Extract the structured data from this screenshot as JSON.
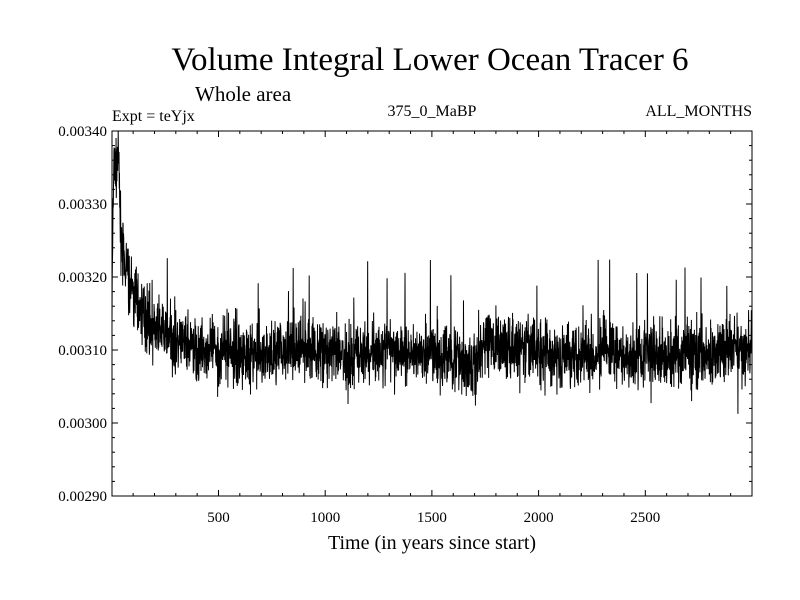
{
  "chart_data": {
    "type": "line",
    "title": "Volume Integral Lower Ocean Tracer 6",
    "subtitle": "Whole area",
    "experiment": "Expt = teYjx",
    "run_label": "375_0_MaBP",
    "months_label": "ALL_MONTHS",
    "xlabel": "Time (in years since start)",
    "ylabel": "",
    "xlim": [
      1,
      3000
    ],
    "ylim": [
      0.0029,
      0.0034
    ],
    "xticks": [
      500,
      1000,
      1500,
      2000,
      2500
    ],
    "yticks": [
      0.0029,
      0.003,
      0.0031,
      0.0032,
      0.0033,
      0.0034
    ],
    "ytick_labels": [
      "0.00290",
      "0.00300",
      "0.00310",
      "0.00320",
      "0.00330",
      "0.00340"
    ],
    "series": [
      {
        "name": "Tracer 6",
        "color": "#000000",
        "x": [
          1,
          10,
          20,
          30,
          40,
          50,
          60,
          70,
          80,
          90,
          100,
          125,
          150,
          175,
          200,
          250,
          300,
          350,
          400,
          450,
          500,
          600,
          700,
          800,
          900,
          1000,
          1100,
          1200,
          1300,
          1400,
          1500,
          1600,
          1650,
          1700,
          1750,
          1800,
          1900,
          2000,
          2100,
          2200,
          2300,
          2400,
          2500,
          2600,
          2700,
          2800,
          2900,
          3000
        ],
        "values": [
          0.00316,
          0.00337,
          0.00333,
          0.00338,
          0.00327,
          0.00325,
          0.0032,
          0.00322,
          0.00319,
          0.00318,
          0.00318,
          0.00316,
          0.00315,
          0.00314,
          0.00313,
          0.00312,
          0.00311,
          0.00311,
          0.0031,
          0.0031,
          0.0031,
          0.0031,
          0.00309,
          0.0031,
          0.0031,
          0.0031,
          0.00309,
          0.0031,
          0.0031,
          0.0031,
          0.00309,
          0.00309,
          0.00308,
          0.00308,
          0.00311,
          0.00311,
          0.0031,
          0.0031,
          0.00309,
          0.0031,
          0.0031,
          0.00309,
          0.0031,
          0.00309,
          0.0031,
          0.00309,
          0.0031,
          0.0031
        ]
      }
    ]
  }
}
